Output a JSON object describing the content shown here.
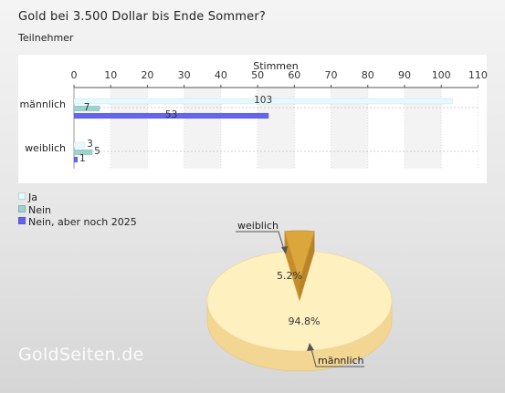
{
  "title": "Gold bei 3.500 Dollar bis Ende Sommer?",
  "subtitle": "Teilnehmer",
  "watermark": "GoldSeiten.de",
  "colors": {
    "Ja": "#e3fbfd",
    "Nein": "#9ed2cf",
    "Nein, aber noch 2025": "#6464ee",
    "pie_maennlich": "#fff0c0",
    "pie_weiblich": "#dba63c"
  },
  "chart_data": [
    {
      "type": "bar",
      "orientation": "horizontal",
      "xlabel": "Stimmen",
      "xlim": [
        0,
        110
      ],
      "xticks": [
        0,
        10,
        20,
        30,
        40,
        50,
        60,
        70,
        80,
        90,
        100,
        110
      ],
      "categories": [
        "männlich",
        "weiblich"
      ],
      "series": [
        {
          "name": "Ja",
          "values": [
            103,
            3
          ]
        },
        {
          "name": "Nein",
          "values": [
            7,
            5
          ]
        },
        {
          "name": "Nein, aber noch 2025",
          "values": [
            53,
            1
          ]
        }
      ],
      "grid": true,
      "legend": "bottom-left"
    },
    {
      "type": "pie",
      "labels": [
        "männlich",
        "weiblich"
      ],
      "values": [
        94.8,
        5.2
      ],
      "value_labels": [
        "94.8%",
        "5.2%"
      ],
      "exploded": "weiblich"
    }
  ]
}
